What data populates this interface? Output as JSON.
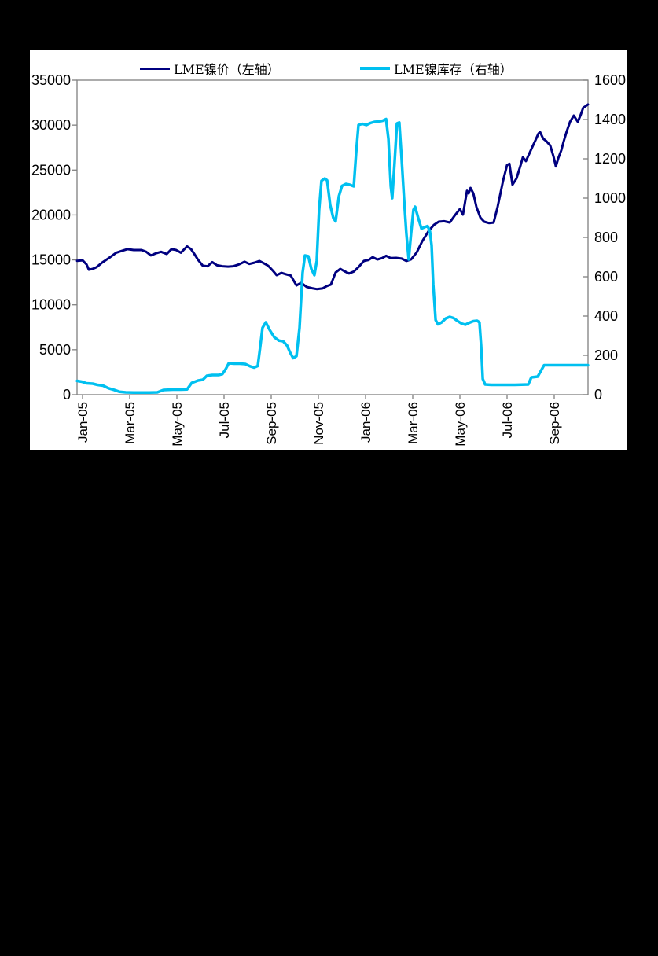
{
  "legend": [
    {
      "label": "LME镍价（左轴）",
      "color": "#000080"
    },
    {
      "label": "LME镍库存（右轴）",
      "color": "#00C0F0"
    }
  ],
  "chart_data": {
    "type": "line",
    "title": "",
    "legend_position": "top",
    "grid": false,
    "frame_color": "#808080",
    "text_color": "#000000",
    "x_axis": {
      "tick_labels": [
        "Jan-05",
        "Mar-05",
        "May-05",
        "Jul-05",
        "Sep-05",
        "Nov-05",
        "Jan-06",
        "Mar-06",
        "May-06",
        "Jul-06",
        "Sep-06"
      ],
      "months_per_tick": 2,
      "label_rotation": -90
    },
    "y_left": {
      "min": 0,
      "max": 35000,
      "step": 5000,
      "tick_labels": [
        "0",
        "5000",
        "10000",
        "15000",
        "20000",
        "25000",
        "30000",
        "35000"
      ]
    },
    "y_right": {
      "min": 0,
      "max": 1600,
      "step": 200,
      "tick_labels": [
        "0",
        "200",
        "400",
        "600",
        "800",
        "1000",
        "1200",
        "1400",
        "1600"
      ]
    },
    "series": [
      {
        "name": "LME镍价（左轴）",
        "axis": "left",
        "color": "#000080",
        "width": 3,
        "points": [
          [
            -0.23,
            14900
          ],
          [
            0,
            14950
          ],
          [
            0.17,
            14500
          ],
          [
            0.27,
            13900
          ],
          [
            0.43,
            14000
          ],
          [
            0.6,
            14200
          ],
          [
            0.83,
            14700
          ],
          [
            1.17,
            15300
          ],
          [
            1.43,
            15800
          ],
          [
            1.67,
            16000
          ],
          [
            1.9,
            16200
          ],
          [
            2.17,
            16100
          ],
          [
            2.5,
            16100
          ],
          [
            2.7,
            15900
          ],
          [
            2.9,
            15500
          ],
          [
            3.13,
            15750
          ],
          [
            3.33,
            15900
          ],
          [
            3.57,
            15650
          ],
          [
            3.77,
            16200
          ],
          [
            3.97,
            16100
          ],
          [
            4.17,
            15800
          ],
          [
            4.43,
            16500
          ],
          [
            4.6,
            16200
          ],
          [
            4.73,
            15700
          ],
          [
            4.9,
            15000
          ],
          [
            5.1,
            14350
          ],
          [
            5.3,
            14300
          ],
          [
            5.5,
            14750
          ],
          [
            5.7,
            14400
          ],
          [
            5.93,
            14300
          ],
          [
            6.17,
            14250
          ],
          [
            6.4,
            14300
          ],
          [
            6.63,
            14500
          ],
          [
            6.87,
            14800
          ],
          [
            7.07,
            14550
          ],
          [
            7.3,
            14700
          ],
          [
            7.5,
            14880
          ],
          [
            7.7,
            14600
          ],
          [
            7.87,
            14350
          ],
          [
            8.07,
            13800
          ],
          [
            8.23,
            13300
          ],
          [
            8.43,
            13550
          ],
          [
            8.63,
            13400
          ],
          [
            8.83,
            13250
          ],
          [
            9.07,
            12160
          ],
          [
            9.27,
            12450
          ],
          [
            9.5,
            12000
          ],
          [
            9.73,
            11850
          ],
          [
            9.93,
            11750
          ],
          [
            10.17,
            11820
          ],
          [
            10.37,
            12100
          ],
          [
            10.53,
            12250
          ],
          [
            10.73,
            13600
          ],
          [
            10.93,
            14000
          ],
          [
            11.13,
            13700
          ],
          [
            11.3,
            13480
          ],
          [
            11.5,
            13700
          ],
          [
            11.7,
            14200
          ],
          [
            11.93,
            14880
          ],
          [
            12.13,
            15000
          ],
          [
            12.3,
            15300
          ],
          [
            12.5,
            15050
          ],
          [
            12.7,
            15200
          ],
          [
            12.87,
            15450
          ],
          [
            13.07,
            15200
          ],
          [
            13.3,
            15225
          ],
          [
            13.53,
            15150
          ],
          [
            13.73,
            14880
          ],
          [
            13.93,
            15050
          ],
          [
            14.17,
            15840
          ],
          [
            14.4,
            17060
          ],
          [
            14.67,
            18200
          ],
          [
            14.9,
            18900
          ],
          [
            15.1,
            19250
          ],
          [
            15.33,
            19300
          ],
          [
            15.57,
            19160
          ],
          [
            15.77,
            19900
          ],
          [
            16.0,
            20650
          ],
          [
            16.13,
            20040
          ],
          [
            16.3,
            22700
          ],
          [
            16.37,
            22400
          ],
          [
            16.45,
            23000
          ],
          [
            16.57,
            22400
          ],
          [
            16.7,
            20900
          ],
          [
            16.87,
            19700
          ],
          [
            17.03,
            19250
          ],
          [
            17.23,
            19100
          ],
          [
            17.43,
            19150
          ],
          [
            17.6,
            20900
          ],
          [
            17.83,
            23800
          ],
          [
            18.0,
            25550
          ],
          [
            18.1,
            25700
          ],
          [
            18.23,
            23360
          ],
          [
            18.4,
            24060
          ],
          [
            18.57,
            25500
          ],
          [
            18.67,
            26425
          ],
          [
            18.8,
            26000
          ],
          [
            19.07,
            27560
          ],
          [
            19.2,
            28300
          ],
          [
            19.33,
            29050
          ],
          [
            19.4,
            29225
          ],
          [
            19.53,
            28500
          ],
          [
            19.67,
            28200
          ],
          [
            19.83,
            27740
          ],
          [
            19.97,
            26500
          ],
          [
            20.07,
            25400
          ],
          [
            20.17,
            26300
          ],
          [
            20.3,
            27200
          ],
          [
            20.4,
            28175
          ],
          [
            20.53,
            29300
          ],
          [
            20.67,
            30360
          ],
          [
            20.83,
            31060
          ],
          [
            21.0,
            30360
          ],
          [
            21.13,
            31200
          ],
          [
            21.23,
            31940
          ],
          [
            21.33,
            32100
          ],
          [
            21.43,
            32300
          ]
        ]
      },
      {
        "name": "LME镍库存（右轴）",
        "axis": "right",
        "color": "#00C0F0",
        "width": 3.5,
        "points": [
          [
            -0.23,
            70
          ],
          [
            -0.03,
            66
          ],
          [
            0.17,
            58
          ],
          [
            0.43,
            56
          ],
          [
            0.63,
            50
          ],
          [
            0.87,
            46
          ],
          [
            1.1,
            33
          ],
          [
            1.33,
            25
          ],
          [
            1.57,
            15
          ],
          [
            1.83,
            12
          ],
          [
            2.17,
            11
          ],
          [
            2.83,
            11
          ],
          [
            3.17,
            12
          ],
          [
            3.43,
            24
          ],
          [
            3.83,
            26
          ],
          [
            4.17,
            26
          ],
          [
            4.43,
            27
          ],
          [
            4.63,
            60
          ],
          [
            4.9,
            72
          ],
          [
            5.1,
            76
          ],
          [
            5.27,
            96
          ],
          [
            5.5,
            100
          ],
          [
            5.77,
            100
          ],
          [
            5.93,
            105
          ],
          [
            6.07,
            130
          ],
          [
            6.2,
            160
          ],
          [
            6.43,
            158
          ],
          [
            6.67,
            158
          ],
          [
            6.9,
            156
          ],
          [
            7.1,
            145
          ],
          [
            7.27,
            138
          ],
          [
            7.43,
            146
          ],
          [
            7.53,
            240
          ],
          [
            7.63,
            340
          ],
          [
            7.77,
            368
          ],
          [
            7.93,
            330
          ],
          [
            8.13,
            292
          ],
          [
            8.33,
            275
          ],
          [
            8.5,
            272
          ],
          [
            8.67,
            250
          ],
          [
            8.8,
            215
          ],
          [
            8.93,
            186
          ],
          [
            9.07,
            196
          ],
          [
            9.2,
            340
          ],
          [
            9.33,
            620
          ],
          [
            9.43,
            708
          ],
          [
            9.57,
            705
          ],
          [
            9.7,
            640
          ],
          [
            9.83,
            608
          ],
          [
            9.93,
            680
          ],
          [
            10.03,
            940
          ],
          [
            10.13,
            1088
          ],
          [
            10.27,
            1100
          ],
          [
            10.37,
            1090
          ],
          [
            10.5,
            965
          ],
          [
            10.63,
            900
          ],
          [
            10.73,
            882
          ],
          [
            10.87,
            1010
          ],
          [
            11.0,
            1062
          ],
          [
            11.17,
            1072
          ],
          [
            11.33,
            1068
          ],
          [
            11.5,
            1060
          ],
          [
            11.6,
            1230
          ],
          [
            11.7,
            1372
          ],
          [
            11.87,
            1378
          ],
          [
            12.03,
            1372
          ],
          [
            12.2,
            1382
          ],
          [
            12.37,
            1388
          ],
          [
            12.57,
            1390
          ],
          [
            12.73,
            1394
          ],
          [
            12.87,
            1402
          ],
          [
            12.97,
            1300
          ],
          [
            13.07,
            1060
          ],
          [
            13.13,
            1000
          ],
          [
            13.23,
            1180
          ],
          [
            13.33,
            1380
          ],
          [
            13.43,
            1385
          ],
          [
            13.53,
            1200
          ],
          [
            13.63,
            1000
          ],
          [
            13.73,
            820
          ],
          [
            13.83,
            688
          ],
          [
            13.93,
            820
          ],
          [
            14.03,
            940
          ],
          [
            14.1,
            956
          ],
          [
            14.23,
            900
          ],
          [
            14.37,
            845
          ],
          [
            14.5,
            852
          ],
          [
            14.63,
            858
          ],
          [
            14.73,
            830
          ],
          [
            14.8,
            760
          ],
          [
            14.87,
            560
          ],
          [
            14.97,
            380
          ],
          [
            15.07,
            358
          ],
          [
            15.23,
            368
          ],
          [
            15.4,
            388
          ],
          [
            15.57,
            396
          ],
          [
            15.73,
            390
          ],
          [
            15.9,
            375
          ],
          [
            16.07,
            362
          ],
          [
            16.23,
            356
          ],
          [
            16.4,
            366
          ],
          [
            16.57,
            374
          ],
          [
            16.73,
            376
          ],
          [
            16.83,
            368
          ],
          [
            16.9,
            250
          ],
          [
            16.97,
            80
          ],
          [
            17.07,
            52
          ],
          [
            17.33,
            50
          ],
          [
            17.83,
            50
          ],
          [
            18.33,
            50
          ],
          [
            18.9,
            52
          ],
          [
            19.03,
            88
          ],
          [
            19.3,
            92
          ],
          [
            19.43,
            120
          ],
          [
            19.57,
            150
          ],
          [
            19.83,
            150
          ],
          [
            20.33,
            150
          ],
          [
            20.83,
            150
          ],
          [
            21.43,
            150
          ]
        ]
      }
    ]
  }
}
